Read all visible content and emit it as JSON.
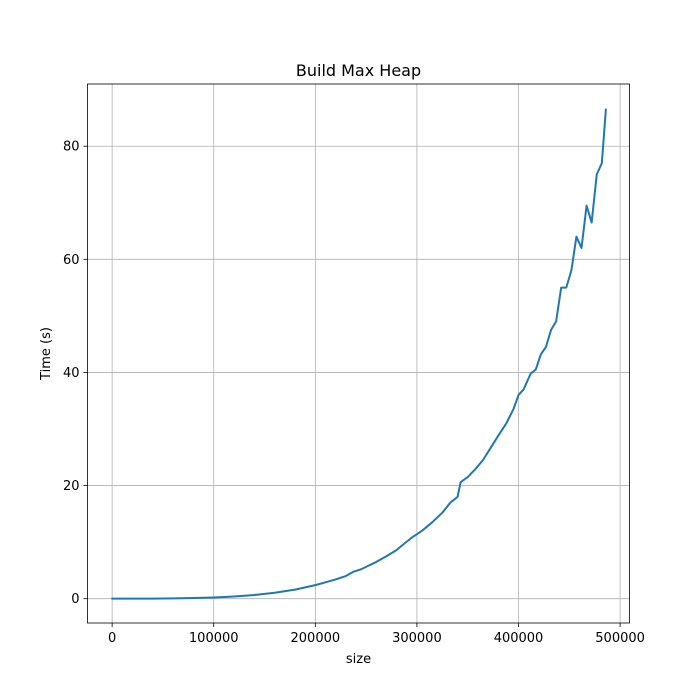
{
  "chart_data": {
    "type": "line",
    "title": "Build Max Heap",
    "xlabel": "size",
    "ylabel": "Time (s)",
    "xlim": [
      -24250,
      509250
    ],
    "ylim": [
      -4.3,
      91.0
    ],
    "x_ticks": [
      0,
      100000,
      200000,
      300000,
      400000,
      500000
    ],
    "x_tick_labels": [
      "0",
      "100000",
      "200000",
      "300000",
      "400000",
      "500000"
    ],
    "y_ticks": [
      0,
      20,
      40,
      60,
      80
    ],
    "y_tick_labels": [
      "0",
      "20",
      "40",
      "60",
      "80"
    ],
    "grid": true,
    "series": [
      {
        "color": "#1f77b4",
        "x": [
          0,
          20000,
          40000,
          60000,
          80000,
          100000,
          120000,
          140000,
          160000,
          180000,
          200000,
          210000,
          220000,
          230000,
          238000,
          245000,
          252000,
          260000,
          270000,
          280000,
          288000,
          295000,
          305000,
          315000,
          325000,
          333000,
          340000,
          343000,
          350000,
          357000,
          365000,
          372000,
          380000,
          388000,
          395000,
          400000,
          405000,
          412000,
          417000,
          422000,
          427000,
          432000,
          437000,
          442000,
          447000,
          452000,
          457000,
          462000,
          467000,
          472000,
          477000,
          482000,
          486000
        ],
        "y": [
          0.0,
          0.0,
          0.02,
          0.06,
          0.12,
          0.22,
          0.38,
          0.65,
          1.05,
          1.6,
          2.4,
          2.9,
          3.4,
          4.0,
          4.8,
          5.2,
          5.8,
          6.5,
          7.5,
          8.6,
          9.8,
          10.8,
          12.0,
          13.5,
          15.2,
          17.0,
          18.0,
          20.6,
          21.5,
          22.8,
          24.5,
          26.5,
          28.8,
          31.0,
          33.5,
          36.0,
          37.0,
          39.8,
          40.5,
          43.2,
          44.5,
          47.5,
          49.0,
          55.0,
          55.0,
          58.0,
          64.0,
          62.0,
          69.5,
          66.5,
          75.0,
          77.0,
          86.5
        ]
      }
    ]
  }
}
